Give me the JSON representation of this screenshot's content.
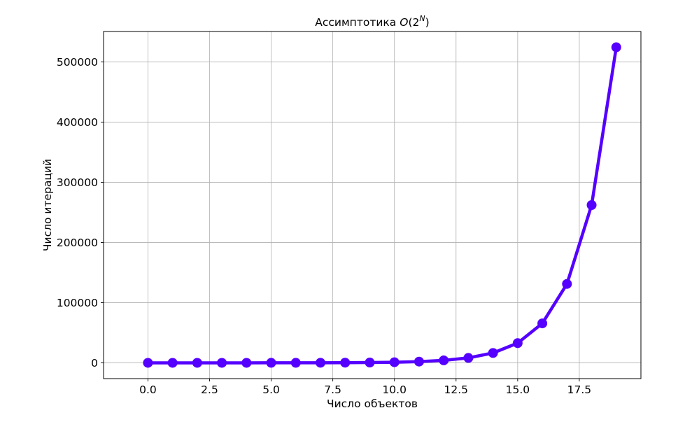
{
  "chart_data": {
    "type": "line",
    "title": "Ассимптотика O(2^N)",
    "title_main": "Ассимптотика",
    "title_formula_o": "O",
    "title_formula_base": "(2",
    "title_formula_exp": "N",
    "title_formula_close": ")",
    "xlabel": "Число объектов",
    "ylabel": "Число итераций",
    "xlim": [
      -1.8,
      20.0
    ],
    "ylim": [
      -26214,
      550502
    ],
    "xticks": [
      0.0,
      2.5,
      5.0,
      7.5,
      10.0,
      12.5,
      15.0,
      17.5
    ],
    "xtick_labels": [
      "0.0",
      "2.5",
      "5.0",
      "7.5",
      "10.0",
      "12.5",
      "15.0",
      "17.5"
    ],
    "yticks": [
      0,
      100000,
      200000,
      300000,
      400000,
      500000
    ],
    "ytick_labels": [
      "0",
      "100000",
      "200000",
      "300000",
      "400000",
      "500000"
    ],
    "grid": true,
    "series": [
      {
        "color": "#5500ff",
        "marker": "circle",
        "x": [
          0,
          1,
          2,
          3,
          4,
          5,
          6,
          7,
          8,
          9,
          10,
          11,
          12,
          13,
          14,
          15,
          16,
          17,
          18,
          19
        ],
        "values": [
          1,
          2,
          4,
          8,
          16,
          32,
          64,
          128,
          256,
          512,
          1024,
          2048,
          4096,
          8192,
          16384,
          32768,
          65536,
          131072,
          262144,
          524288
        ]
      }
    ]
  }
}
